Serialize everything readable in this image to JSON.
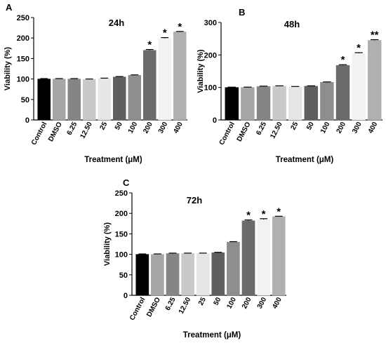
{
  "colors": [
    "#000000",
    "#a6a6a6",
    "#858585",
    "#c9c9c9",
    "#e6e6e6",
    "#5f5f5f",
    "#8e8e8e",
    "#6b6b6b",
    "#f2f2f2",
    "#b0b0b0",
    "#000000"
  ],
  "chart_data": [
    {
      "type": "bar",
      "panel_label": "A",
      "title": "24h",
      "ylabel": "Viability (%)",
      "xlabel": "Treatment (μM)",
      "categories": [
        "Control",
        "DMSO",
        "6.25",
        "12.50",
        "25",
        "50",
        "100",
        "200",
        "300",
        "400"
      ],
      "values": [
        100,
        100,
        100,
        99,
        101,
        105,
        109,
        170,
        199,
        215
      ],
      "errors": [
        1,
        1,
        1,
        1,
        1,
        1,
        1,
        2,
        2,
        1
      ],
      "annotations": [
        "",
        "",
        "",
        "",
        "",
        "",
        "",
        "*",
        "*",
        "*"
      ],
      "yticks": [
        "0",
        "50",
        "100",
        "150",
        "200",
        "250"
      ],
      "ylim": [
        0,
        250
      ],
      "grid": false
    },
    {
      "type": "bar",
      "panel_label": "B",
      "title": "48h",
      "ylabel": "Viability (%)",
      "xlabel": "Treatment (μM)",
      "categories": [
        "Control",
        "DMSO",
        "6.25",
        "12.50",
        "25",
        "50",
        "100",
        "200",
        "300",
        "400"
      ],
      "values": [
        100,
        100,
        103,
        104,
        102,
        104,
        116,
        168,
        205,
        245
      ],
      "errors": [
        1,
        1,
        1,
        1,
        1,
        1,
        1,
        2,
        2,
        2
      ],
      "annotations": [
        "",
        "",
        "",
        "",
        "",
        "",
        "",
        "*",
        "*",
        "**"
      ],
      "yticks": [
        "0",
        "100",
        "200",
        "300"
      ],
      "ylim": [
        0,
        300
      ],
      "grid": false
    },
    {
      "type": "bar",
      "panel_label": "C",
      "title": "72h",
      "ylabel": "Viability (%)",
      "xlabel": "Treatment (μM)",
      "categories": [
        "Control",
        "DMSO",
        "6.25",
        "12.50",
        "25",
        "50",
        "100",
        "200",
        "300",
        "400"
      ],
      "values": [
        100,
        100,
        102,
        102,
        102,
        104,
        130,
        182,
        185,
        192
      ],
      "errors": [
        1,
        1,
        1,
        1,
        1,
        1,
        1,
        2,
        2,
        1
      ],
      "annotations": [
        "",
        "",
        "",
        "",
        "",
        "",
        "",
        "*",
        "*",
        "*"
      ],
      "yticks": [
        "0",
        "50",
        "100",
        "150",
        "200",
        "250"
      ],
      "ylim": [
        0,
        250
      ],
      "grid": false
    }
  ]
}
